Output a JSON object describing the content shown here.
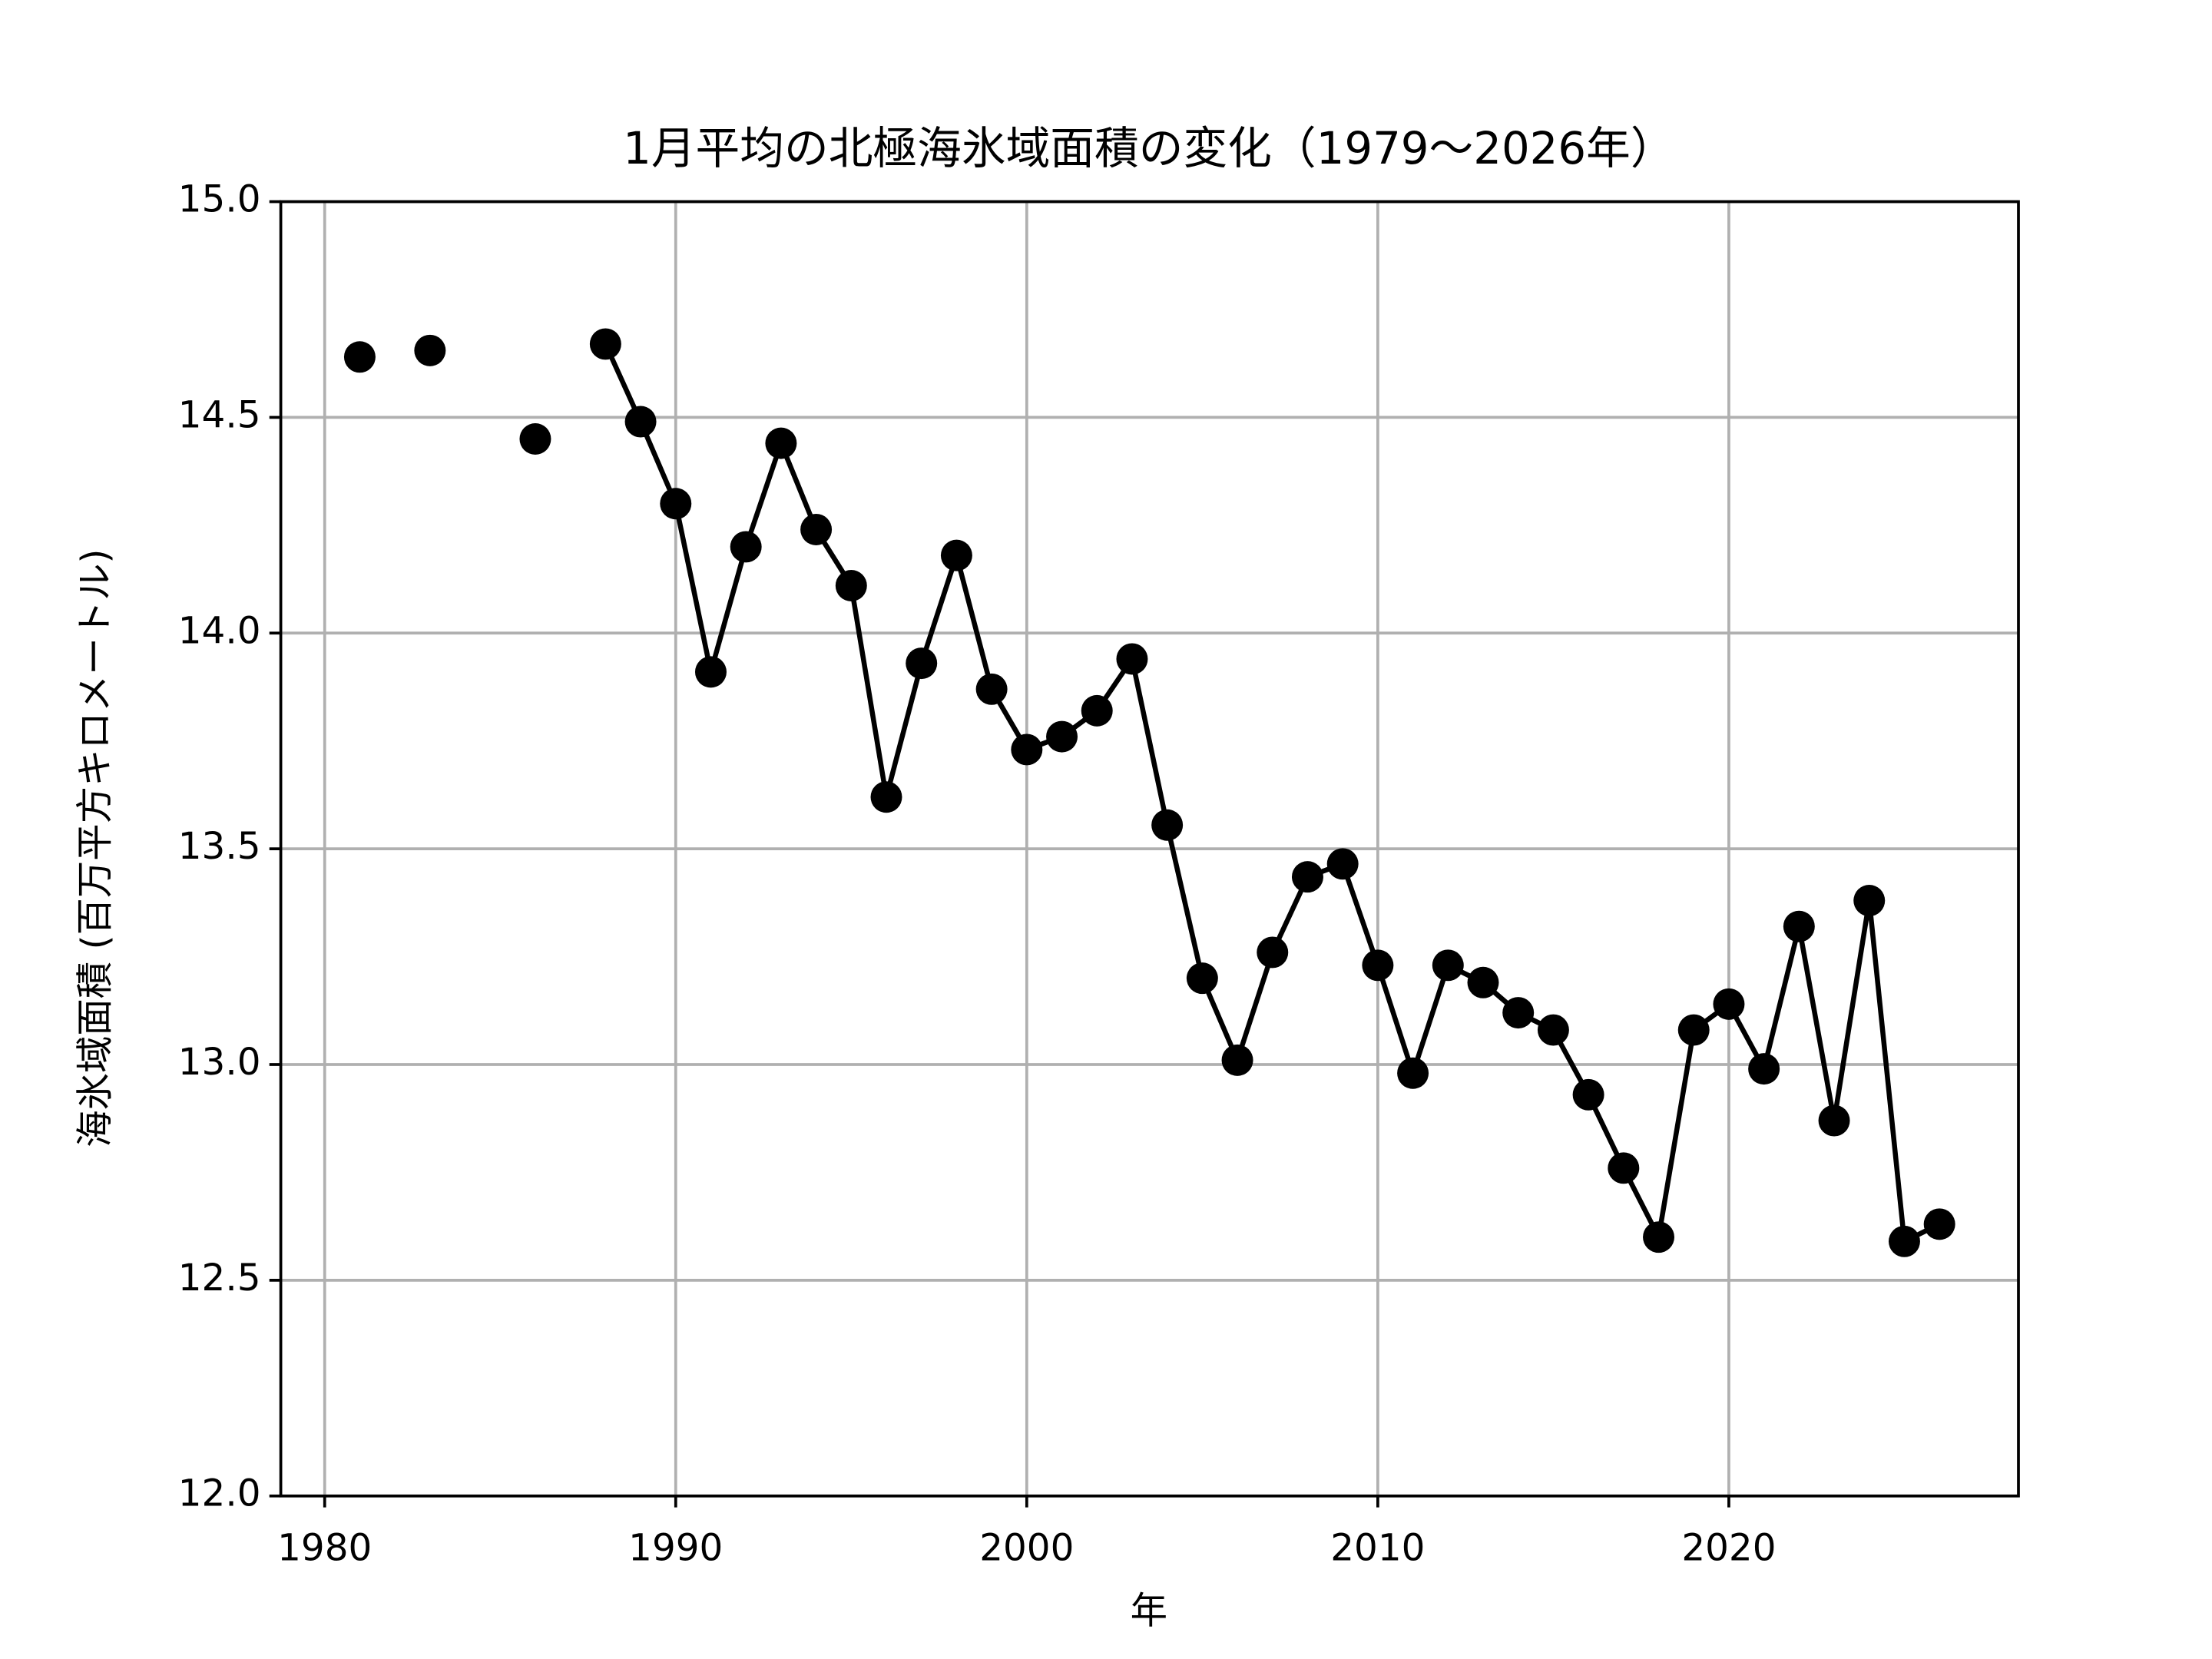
{
  "chart_data": {
    "type": "line",
    "title": "1月平均の北極海氷域面積の変化（1979〜2026年）",
    "x_label": "年",
    "y_label": "海氷域面積 (百万平方キロメートル)",
    "x": [
      1981,
      1982,
      1983,
      1984,
      1985,
      1986,
      1987,
      1988,
      1989,
      1990,
      1991,
      1992,
      1993,
      1994,
      1995,
      1996,
      1997,
      1998,
      1999,
      2000,
      2001,
      2002,
      2003,
      2004,
      2005,
      2006,
      2007,
      2008,
      2009,
      2010,
      2011,
      2012,
      2013,
      2014,
      2015,
      2016,
      2017,
      2018,
      2019,
      2020,
      2021,
      2022,
      2023,
      2024,
      2025,
      2026
    ],
    "series": [
      {
        "color": "#000000",
        "values": [
          14.64,
          null,
          14.655,
          null,
          null,
          14.45,
          null,
          14.67,
          14.49,
          14.3,
          13.91,
          14.2,
          14.44,
          14.24,
          14.11,
          13.62,
          13.93,
          14.18,
          13.87,
          13.73,
          13.76,
          13.82,
          13.94,
          13.555,
          13.2,
          13.01,
          13.26,
          13.435,
          13.465,
          13.23,
          12.98,
          13.23,
          13.19,
          13.12,
          13.08,
          12.93,
          12.76,
          12.6,
          13.08,
          13.14,
          12.99,
          13.32,
          12.87,
          13.38,
          12.59,
          12.63
        ]
      }
    ],
    "xlim": [
      1978.75,
      2028.25
    ],
    "ylim": [
      12.0,
      15.0
    ],
    "xticks": [
      1980,
      1990,
      2000,
      2010,
      2020
    ],
    "yticks": [
      {
        "value": 12.0,
        "label": "12.0"
      },
      {
        "value": 12.5,
        "label": "12.5"
      },
      {
        "value": 13.0,
        "label": "13.0"
      },
      {
        "value": 13.5,
        "label": "13.5"
      },
      {
        "value": 14.0,
        "label": "14.0"
      },
      {
        "value": 14.5,
        "label": "14.5"
      },
      {
        "value": 15.0,
        "label": "15.0"
      }
    ],
    "grid": true
  }
}
